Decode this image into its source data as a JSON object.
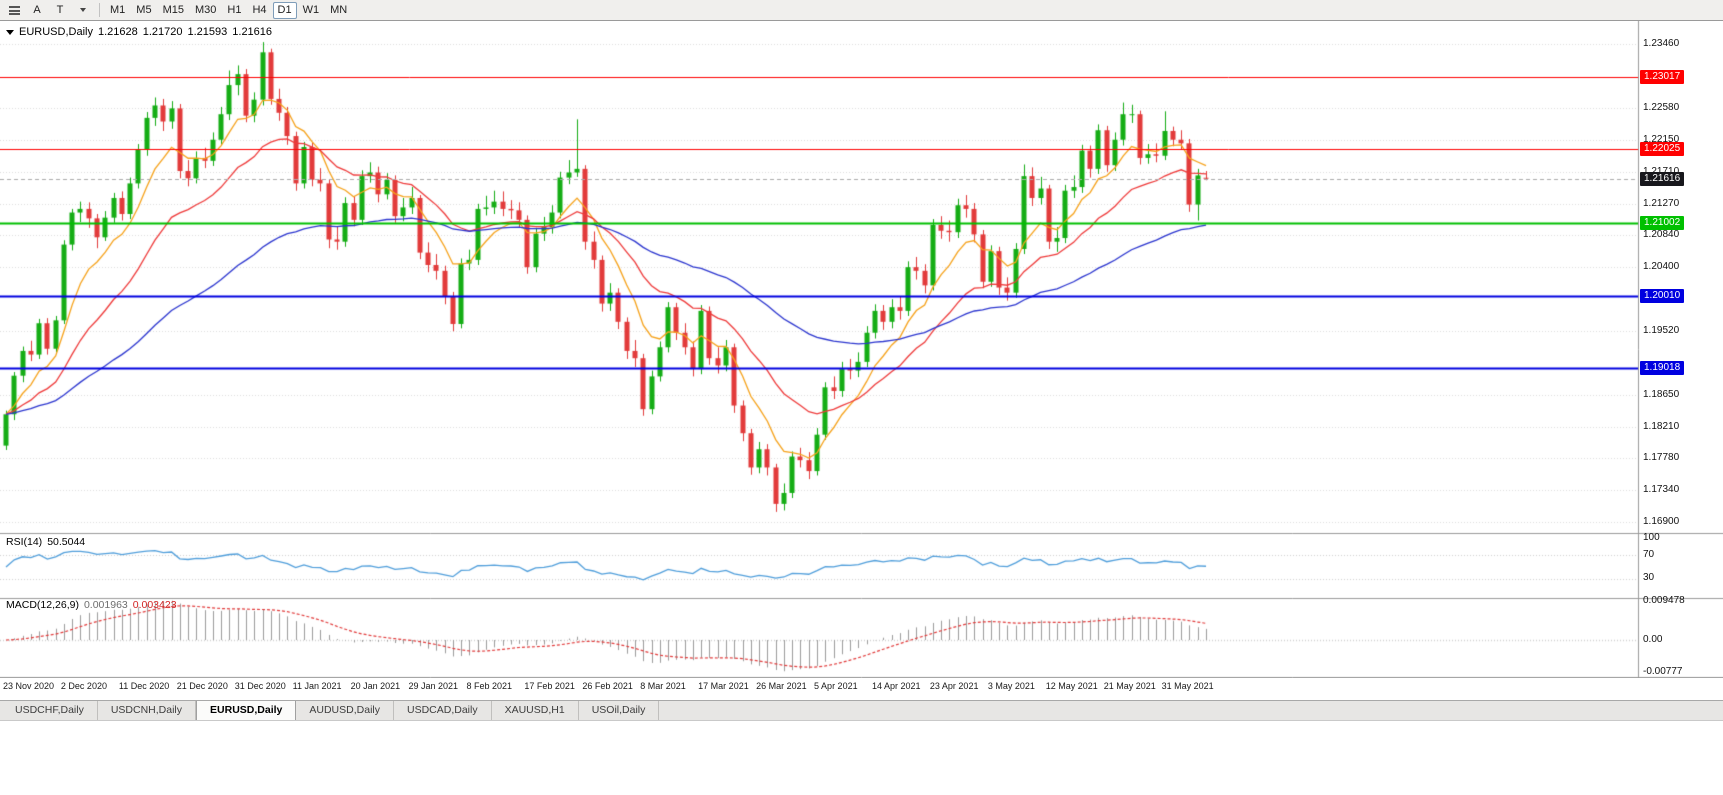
{
  "toolbar": {
    "cursor_label": "A",
    "text_tool_label": "T",
    "timeframes": [
      "M1",
      "M5",
      "M15",
      "M30",
      "H1",
      "H4",
      "D1",
      "W1",
      "MN"
    ],
    "active_timeframe": "D1"
  },
  "main_header": {
    "symbol": "EURUSD,Daily",
    "open": "1.21628",
    "high": "1.21720",
    "low": "1.21593",
    "close": "1.21616"
  },
  "rsi_header": {
    "name": "RSI(14)",
    "value": "50.5044"
  },
  "macd_header": {
    "name": "MACD(12,26,9)",
    "value1": "0.001963",
    "value2": "0.003423"
  },
  "price_axis": {
    "ticks": [
      "1.23460",
      "1.22580",
      "1.22150",
      "1.21710",
      "1.21270",
      "1.20840",
      "1.20400",
      "1.19520",
      "1.18650",
      "1.18210",
      "1.17780",
      "1.17340",
      "1.16900"
    ]
  },
  "hlines": [
    {
      "price": 1.23017,
      "label": "1.23017",
      "color": "#ff0000",
      "width": 1
    },
    {
      "price": 1.22025,
      "label": "1.22025",
      "color": "#ff0000",
      "width": 1
    },
    {
      "price": 1.21002,
      "label": "1.21002",
      "color": "#00c000",
      "width": 2
    },
    {
      "price": 1.2001,
      "label": "1.20010",
      "color": "#0000e0",
      "width": 2
    },
    {
      "price": 1.19018,
      "label": "1.19018",
      "color": "#0000e0",
      "width": 2
    }
  ],
  "current_price": {
    "price": 1.21616,
    "label": "1.21616",
    "color": "#17171c"
  },
  "colors": {
    "candle_up": "#15ad15",
    "candle_down": "#e23b3b",
    "grid": "#dcdcdc",
    "separator": "#9a9a9a",
    "current_price_line": "#aaaaaa"
  },
  "tabs": [
    {
      "label": "USDCHF,Daily",
      "active": false
    },
    {
      "label": "USDCNH,Daily",
      "active": false
    },
    {
      "label": "EURUSD,Daily",
      "active": true
    },
    {
      "label": "AUDUSD,Daily",
      "active": false
    },
    {
      "label": "USDCAD,Daily",
      "active": false
    },
    {
      "label": "XAUUSD,H1",
      "active": false
    },
    {
      "label": "USOil,Daily",
      "active": false
    }
  ],
  "chart_data": {
    "type": "candlestick",
    "symbol": "EURUSD",
    "timeframe": "Daily",
    "ylim": [
      1.1675,
      1.2378
    ],
    "x_labels": [
      {
        "bar": 0,
        "label": "23 Nov 2020"
      },
      {
        "bar": 7,
        "label": "2 Dec 2020"
      },
      {
        "bar": 14,
        "label": "11 Dec 2020"
      },
      {
        "bar": 21,
        "label": "21 Dec 2020"
      },
      {
        "bar": 28,
        "label": "31 Dec 2020"
      },
      {
        "bar": 35,
        "label": "11 Jan 2021"
      },
      {
        "bar": 42,
        "label": "20 Jan 2021"
      },
      {
        "bar": 49,
        "label": "29 Jan 2021"
      },
      {
        "bar": 56,
        "label": "8 Feb 2021"
      },
      {
        "bar": 63,
        "label": "17 Feb 2021"
      },
      {
        "bar": 70,
        "label": "26 Feb 2021"
      },
      {
        "bar": 77,
        "label": "8 Mar 2021"
      },
      {
        "bar": 84,
        "label": "17 Mar 2021"
      },
      {
        "bar": 91,
        "label": "26 Mar 2021"
      },
      {
        "bar": 98,
        "label": "5 Apr 2021"
      },
      {
        "bar": 105,
        "label": "14 Apr 2021"
      },
      {
        "bar": 112,
        "label": "23 Apr 2021"
      },
      {
        "bar": 119,
        "label": "3 May 2021"
      },
      {
        "bar": 126,
        "label": "12 May 2021"
      },
      {
        "bar": 133,
        "label": "21 May 2021"
      },
      {
        "bar": 140,
        "label": "31 May 2021"
      }
    ],
    "moving_averages": [
      {
        "period": 8,
        "color": "#f6a21a"
      },
      {
        "period": 20,
        "color": "#ef3a3a"
      },
      {
        "period": 55,
        "color": "#2b35cf"
      }
    ],
    "indicators": {
      "rsi": {
        "period": 14,
        "value": "50.5044",
        "color": "#4f9edb",
        "axis": [
          "100",
          "70",
          "30"
        ],
        "levels": [
          70,
          30
        ]
      },
      "macd": {
        "fast": 12,
        "slow": 26,
        "signal": 9,
        "values": [
          "0.001963",
          "0.003423"
        ],
        "histogram_color": "#9b9b9b",
        "signal_color": "#e23b3b",
        "axis": [
          "0.009478",
          "0.00",
          "-0.00777"
        ],
        "ymax": 0.009478,
        "ymin": -0.00777
      }
    },
    "candles": [
      [
        1.1795,
        1.1843,
        1.1789,
        1.1838
      ],
      [
        1.1838,
        1.1896,
        1.183,
        1.1891
      ],
      [
        1.1891,
        1.1931,
        1.1882,
        1.1925
      ],
      [
        1.1925,
        1.1939,
        1.1911,
        1.192
      ],
      [
        1.192,
        1.1969,
        1.1914,
        1.1963
      ],
      [
        1.1963,
        1.197,
        1.192,
        1.1928
      ],
      [
        1.1928,
        1.1973,
        1.1923,
        1.1967
      ],
      [
        1.1967,
        1.2077,
        1.1962,
        1.2071
      ],
      [
        1.2071,
        1.212,
        1.2063,
        1.2115
      ],
      [
        1.2115,
        1.213,
        1.2102,
        1.212
      ],
      [
        1.212,
        1.2129,
        1.2094,
        1.2107
      ],
      [
        1.2107,
        1.2113,
        1.2066,
        1.2081
      ],
      [
        1.2081,
        1.2117,
        1.2076,
        1.2108
      ],
      [
        1.2108,
        1.2142,
        1.2101,
        1.2135
      ],
      [
        1.2135,
        1.2144,
        1.2104,
        1.2113
      ],
      [
        1.2113,
        1.2163,
        1.2106,
        1.2155
      ],
      [
        1.2155,
        1.2209,
        1.2148,
        1.2201
      ],
      [
        1.2201,
        1.2253,
        1.2193,
        1.2245
      ],
      [
        1.2245,
        1.2273,
        1.2234,
        1.2262
      ],
      [
        1.2262,
        1.2271,
        1.2227,
        1.224
      ],
      [
        1.224,
        1.2268,
        1.223,
        1.2258
      ],
      [
        1.2258,
        1.2264,
        1.2162,
        1.2172
      ],
      [
        1.2172,
        1.2187,
        1.2151,
        1.2162
      ],
      [
        1.2162,
        1.2199,
        1.2155,
        1.219
      ],
      [
        1.219,
        1.2204,
        1.2176,
        1.2186
      ],
      [
        1.2186,
        1.2225,
        1.2179,
        1.2215
      ],
      [
        1.2215,
        1.226,
        1.2208,
        1.225
      ],
      [
        1.225,
        1.231,
        1.2242,
        1.229
      ],
      [
        1.229,
        1.2317,
        1.2276,
        1.2305
      ],
      [
        1.2305,
        1.2312,
        1.2239,
        1.2248
      ],
      [
        1.2248,
        1.228,
        1.2239,
        1.227
      ],
      [
        1.227,
        1.2349,
        1.2262,
        1.2335
      ],
      [
        1.2335,
        1.234,
        1.2263,
        1.2271
      ],
      [
        1.2271,
        1.2285,
        1.2241,
        1.2252
      ],
      [
        1.2252,
        1.226,
        1.2208,
        1.222
      ],
      [
        1.222,
        1.2226,
        1.2145,
        1.2155
      ],
      [
        1.2155,
        1.2212,
        1.2148,
        1.2205
      ],
      [
        1.2205,
        1.2211,
        1.2151,
        1.216
      ],
      [
        1.216,
        1.2176,
        1.2144,
        1.2155
      ],
      [
        1.2155,
        1.216,
        1.2066,
        1.2078
      ],
      [
        1.2078,
        1.2096,
        1.2064,
        1.2075
      ],
      [
        1.2075,
        1.2136,
        1.2068,
        1.2128
      ],
      [
        1.2128,
        1.2137,
        1.2096,
        1.2105
      ],
      [
        1.2105,
        1.2173,
        1.2098,
        1.2165
      ],
      [
        1.2165,
        1.2184,
        1.2156,
        1.217
      ],
      [
        1.217,
        1.2178,
        1.2129,
        1.214
      ],
      [
        1.214,
        1.2169,
        1.2133,
        1.216
      ],
      [
        1.216,
        1.2166,
        1.2101,
        1.211
      ],
      [
        1.211,
        1.2135,
        1.2103,
        1.2122
      ],
      [
        1.2122,
        1.215,
        1.2113,
        1.2135
      ],
      [
        1.2135,
        1.2139,
        1.2051,
        1.206
      ],
      [
        1.206,
        1.2074,
        1.2033,
        1.2043
      ],
      [
        1.2043,
        1.2058,
        1.2023,
        1.2035
      ],
      [
        1.2035,
        1.2042,
        1.1989,
        1.2
      ],
      [
        1.2,
        1.2006,
        1.1952,
        1.1962
      ],
      [
        1.1962,
        1.2052,
        1.1956,
        1.2045
      ],
      [
        1.2045,
        1.2064,
        1.2036,
        1.205
      ],
      [
        1.205,
        1.2127,
        1.2043,
        1.212
      ],
      [
        1.212,
        1.2138,
        1.2111,
        1.2122
      ],
      [
        1.2122,
        1.2145,
        1.2113,
        1.213
      ],
      [
        1.213,
        1.2144,
        1.211,
        1.212
      ],
      [
        1.212,
        1.2132,
        1.2106,
        1.2118
      ],
      [
        1.2118,
        1.2129,
        1.2095,
        1.2105
      ],
      [
        1.2105,
        1.2111,
        1.2031,
        1.204
      ],
      [
        1.204,
        1.2094,
        1.2033,
        1.2086
      ],
      [
        1.2086,
        1.2109,
        1.2076,
        1.2095
      ],
      [
        1.2095,
        1.2125,
        1.2086,
        1.2115
      ],
      [
        1.2115,
        1.2171,
        1.2107,
        1.2163
      ],
      [
        1.2163,
        1.2187,
        1.2154,
        1.217
      ],
      [
        1.217,
        1.2243,
        1.2164,
        1.2175
      ],
      [
        1.2175,
        1.218,
        1.2064,
        1.2075
      ],
      [
        1.2075,
        1.2089,
        1.2038,
        1.205
      ],
      [
        1.205,
        1.2056,
        1.1979,
        1.199
      ],
      [
        1.199,
        1.2018,
        1.198,
        1.2005
      ],
      [
        1.2005,
        1.2011,
        1.1955,
        1.1965
      ],
      [
        1.1965,
        1.1971,
        1.1914,
        1.1925
      ],
      [
        1.1925,
        1.194,
        1.1903,
        1.1915
      ],
      [
        1.1915,
        1.1921,
        1.1836,
        1.1845
      ],
      [
        1.1845,
        1.1898,
        1.1838,
        1.189
      ],
      [
        1.189,
        1.1938,
        1.1883,
        1.193
      ],
      [
        1.193,
        1.1992,
        1.1923,
        1.1985
      ],
      [
        1.1985,
        1.1991,
        1.194,
        1.195
      ],
      [
        1.195,
        1.1963,
        1.192,
        1.193
      ],
      [
        1.193,
        1.1938,
        1.189,
        1.19
      ],
      [
        1.19,
        1.1988,
        1.1893,
        1.198
      ],
      [
        1.198,
        1.1986,
        1.1906,
        1.1915
      ],
      [
        1.1915,
        1.193,
        1.1894,
        1.1905
      ],
      [
        1.1905,
        1.194,
        1.1897,
        1.193
      ],
      [
        1.193,
        1.1935,
        1.184,
        1.185
      ],
      [
        1.185,
        1.1857,
        1.1801,
        1.1812
      ],
      [
        1.1812,
        1.1818,
        1.1755,
        1.1765
      ],
      [
        1.1765,
        1.18,
        1.1757,
        1.179
      ],
      [
        1.179,
        1.1797,
        1.1754,
        1.1765
      ],
      [
        1.1765,
        1.177,
        1.1704,
        1.1715
      ],
      [
        1.1715,
        1.1743,
        1.1706,
        1.173
      ],
      [
        1.173,
        1.1787,
        1.1723,
        1.178
      ],
      [
        1.178,
        1.1792,
        1.1765,
        1.1775
      ],
      [
        1.1775,
        1.1786,
        1.1749,
        1.176
      ],
      [
        1.176,
        1.1819,
        1.1754,
        1.181
      ],
      [
        1.181,
        1.1882,
        1.1803,
        1.1875
      ],
      [
        1.1875,
        1.189,
        1.1859,
        1.187
      ],
      [
        1.187,
        1.191,
        1.1862,
        1.19
      ],
      [
        1.19,
        1.1914,
        1.1886,
        1.1898
      ],
      [
        1.1898,
        1.1923,
        1.1889,
        1.191
      ],
      [
        1.191,
        1.1959,
        1.1903,
        1.195
      ],
      [
        1.195,
        1.1989,
        1.1942,
        1.198
      ],
      [
        1.198,
        1.1988,
        1.1954,
        1.1965
      ],
      [
        1.1965,
        1.1996,
        1.1956,
        1.1985
      ],
      [
        1.1985,
        1.1999,
        1.1968,
        1.198
      ],
      [
        1.198,
        1.2048,
        1.1973,
        1.204
      ],
      [
        1.204,
        1.2054,
        1.2023,
        1.2035
      ],
      [
        1.2035,
        1.2044,
        1.2004,
        1.2015
      ],
      [
        1.2015,
        1.2106,
        1.2008,
        1.2098
      ],
      [
        1.2098,
        1.211,
        1.2079,
        1.209
      ],
      [
        1.209,
        1.2104,
        1.2075,
        1.2088
      ],
      [
        1.2088,
        1.2134,
        1.208,
        1.2125
      ],
      [
        1.2125,
        1.2139,
        1.2108,
        1.212
      ],
      [
        1.212,
        1.2128,
        1.2074,
        1.2085
      ],
      [
        1.2085,
        1.2091,
        1.2011,
        1.202
      ],
      [
        1.202,
        1.207,
        1.2013,
        1.2062
      ],
      [
        1.2062,
        1.2068,
        1.2002,
        1.2012
      ],
      [
        1.2012,
        1.2026,
        1.1994,
        1.2005
      ],
      [
        1.2005,
        1.2073,
        1.1998,
        1.2065
      ],
      [
        1.2065,
        1.2181,
        1.2058,
        1.2165
      ],
      [
        1.2165,
        1.2177,
        1.2124,
        1.2135
      ],
      [
        1.2135,
        1.2164,
        1.2126,
        1.2148
      ],
      [
        1.2148,
        1.2153,
        1.2065,
        1.2075
      ],
      [
        1.2075,
        1.2095,
        1.2061,
        1.208
      ],
      [
        1.208,
        1.2153,
        1.2073,
        1.2145
      ],
      [
        1.2145,
        1.2166,
        1.2135,
        1.215
      ],
      [
        1.215,
        1.2208,
        1.2142,
        1.22
      ],
      [
        1.22,
        1.2207,
        1.2163,
        1.2175
      ],
      [
        1.2175,
        1.2236,
        1.2168,
        1.2228
      ],
      [
        1.2228,
        1.2234,
        1.2171,
        1.218
      ],
      [
        1.218,
        1.2225,
        1.2172,
        1.2215
      ],
      [
        1.2215,
        1.2266,
        1.2207,
        1.225
      ],
      [
        1.225,
        1.2263,
        1.2238,
        1.225
      ],
      [
        1.225,
        1.2255,
        1.2181,
        1.219
      ],
      [
        1.219,
        1.2209,
        1.2182,
        1.2195
      ],
      [
        1.2195,
        1.221,
        1.2184,
        1.2193
      ],
      [
        1.2193,
        1.2254,
        1.2187,
        1.2227
      ],
      [
        1.2227,
        1.2233,
        1.2206,
        1.2215
      ],
      [
        1.2215,
        1.2228,
        1.2201,
        1.221
      ],
      [
        1.221,
        1.2216,
        1.2116,
        1.2126
      ],
      [
        1.2126,
        1.2175,
        1.2104,
        1.2166
      ],
      [
        1.21628,
        1.2172,
        1.21593,
        1.21616
      ]
    ]
  }
}
